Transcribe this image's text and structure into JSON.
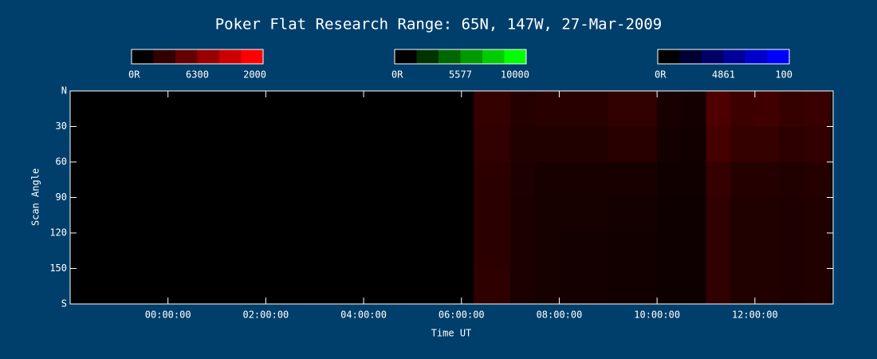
{
  "chart_data": {
    "type": "heatmap",
    "title": "Poker Flat Research Range: 65N, 147W, 27-Mar-2009",
    "xlabel": "Time UT",
    "ylabel": "Scan Angle",
    "xlim": [
      -2,
      13.6
    ],
    "xticks": [
      {
        "value": 0,
        "label": "00:00:00"
      },
      {
        "value": 2,
        "label": "02:00:00"
      },
      {
        "value": 4,
        "label": "04:00:00"
      },
      {
        "value": 6,
        "label": "06:00:00"
      },
      {
        "value": 8,
        "label": "08:00:00"
      },
      {
        "value": 10,
        "label": "10:00:00"
      },
      {
        "value": 12,
        "label": "12:00:00"
      }
    ],
    "ylim": [
      0,
      180
    ],
    "yticks": [
      {
        "value": 0,
        "label": "N"
      },
      30,
      60,
      90,
      120,
      150,
      {
        "value": 180,
        "label": "S"
      }
    ],
    "colorbars": [
      {
        "min_label": "0R",
        "wavelength": "6300",
        "max": 2000,
        "color": "#ff0000"
      },
      {
        "min_label": "0R",
        "wavelength": "5577",
        "max": 10000,
        "color": "#00ff00"
      },
      {
        "min_label": "0R",
        "wavelength": "4861",
        "max": 100,
        "color": "#0000ff"
      }
    ],
    "x_edges": [
      6.25,
      7.0,
      7.5,
      8.0,
      9.0,
      10.0,
      10.5,
      11.0,
      11.5,
      12.0,
      12.5,
      13.0,
      13.55
    ],
    "y_edges": [
      0,
      30,
      60,
      90,
      120,
      150,
      180
    ],
    "values": [
      [
        260,
        180,
        200,
        200,
        240,
        120,
        100,
        380,
        300,
        320,
        260,
        280
      ],
      [
        240,
        160,
        160,
        160,
        200,
        100,
        90,
        340,
        260,
        260,
        220,
        240
      ],
      [
        220,
        140,
        120,
        120,
        120,
        80,
        80,
        260,
        180,
        180,
        160,
        180
      ],
      [
        220,
        130,
        110,
        110,
        100,
        70,
        70,
        240,
        160,
        160,
        150,
        160
      ],
      [
        220,
        130,
        110,
        100,
        90,
        70,
        70,
        240,
        160,
        160,
        150,
        160
      ],
      [
        230,
        130,
        110,
        100,
        90,
        70,
        70,
        240,
        160,
        160,
        150,
        160
      ]
    ]
  }
}
